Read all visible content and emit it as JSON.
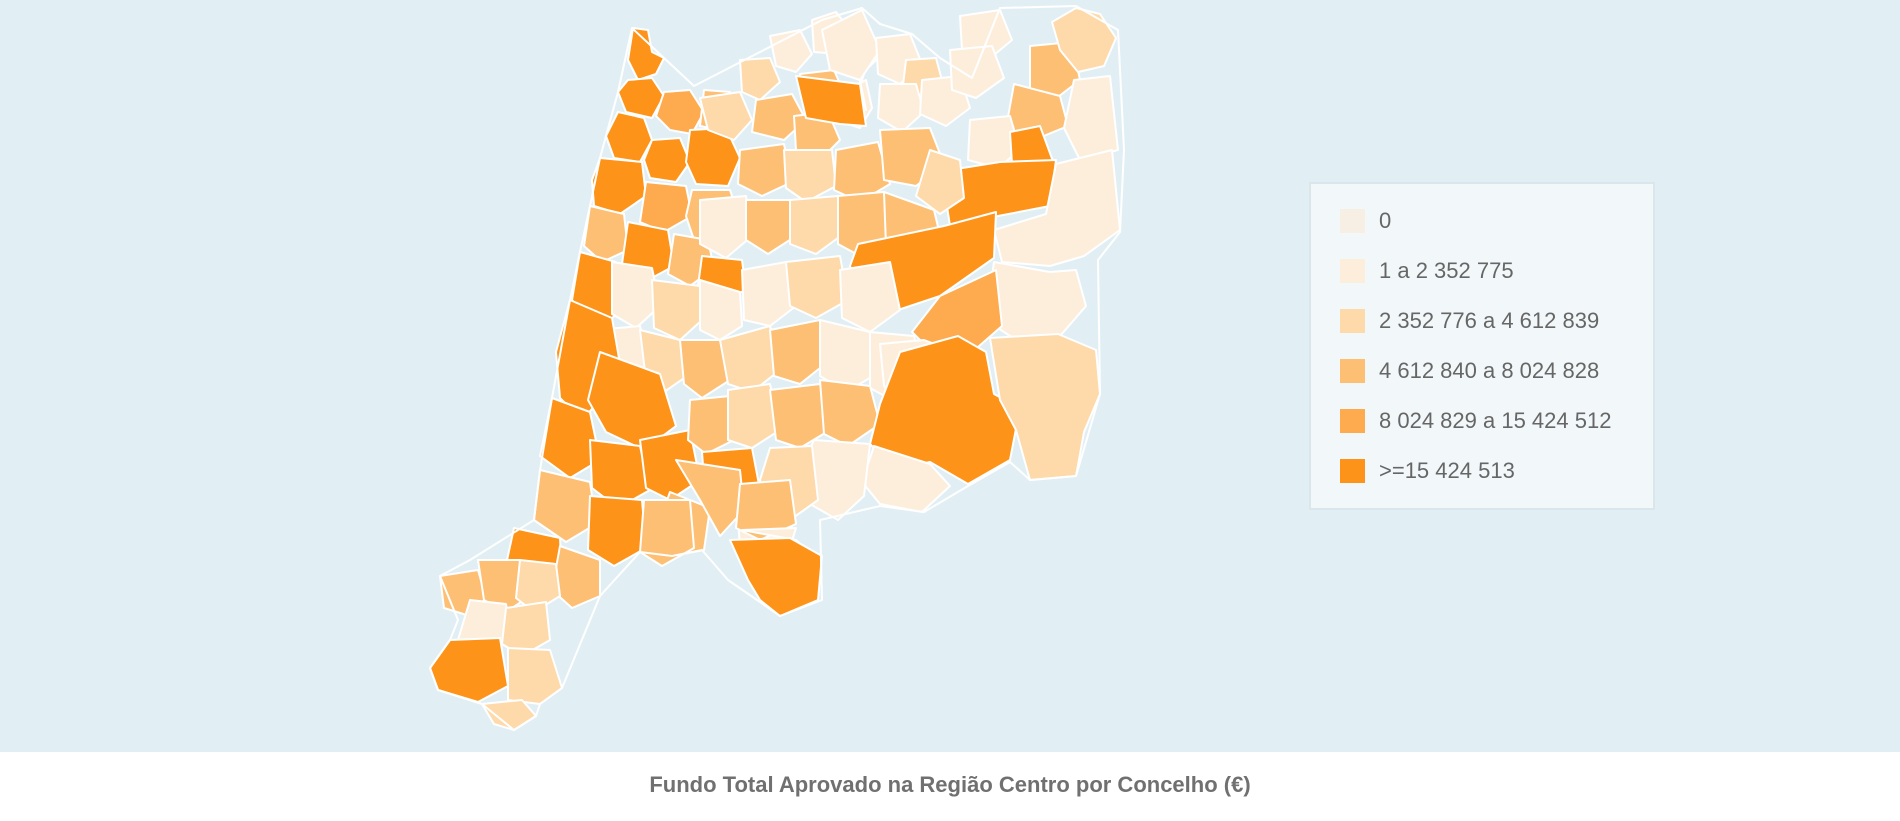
{
  "title": "Fundo Total Aprovado na Região Centro por Concelho (€)",
  "colors": {
    "background": "#e1eff5",
    "border": "#ffffff",
    "classes": [
      "#f7efe4",
      "#fdeedc",
      "#fed9a9",
      "#fdbf73",
      "#fdab4e",
      "#fd9419"
    ]
  },
  "legend": {
    "items": [
      {
        "label": "0",
        "color": "#f7efe4"
      },
      {
        "label": "1 a 2 352 775",
        "color": "#fdeedc"
      },
      {
        "label": "2 352 776 a 4 612 839",
        "color": "#fed9a9"
      },
      {
        "label": "4 612 840 a 8 024 828",
        "color": "#fdbf73"
      },
      {
        "label": "8 024 829 a 15 424 512",
        "color": "#fdab4e"
      },
      {
        "label": ">=15 424 513",
        "color": "#fd9419"
      }
    ]
  },
  "map": {
    "region": "Região Centro",
    "municipality_count": 100
  }
}
